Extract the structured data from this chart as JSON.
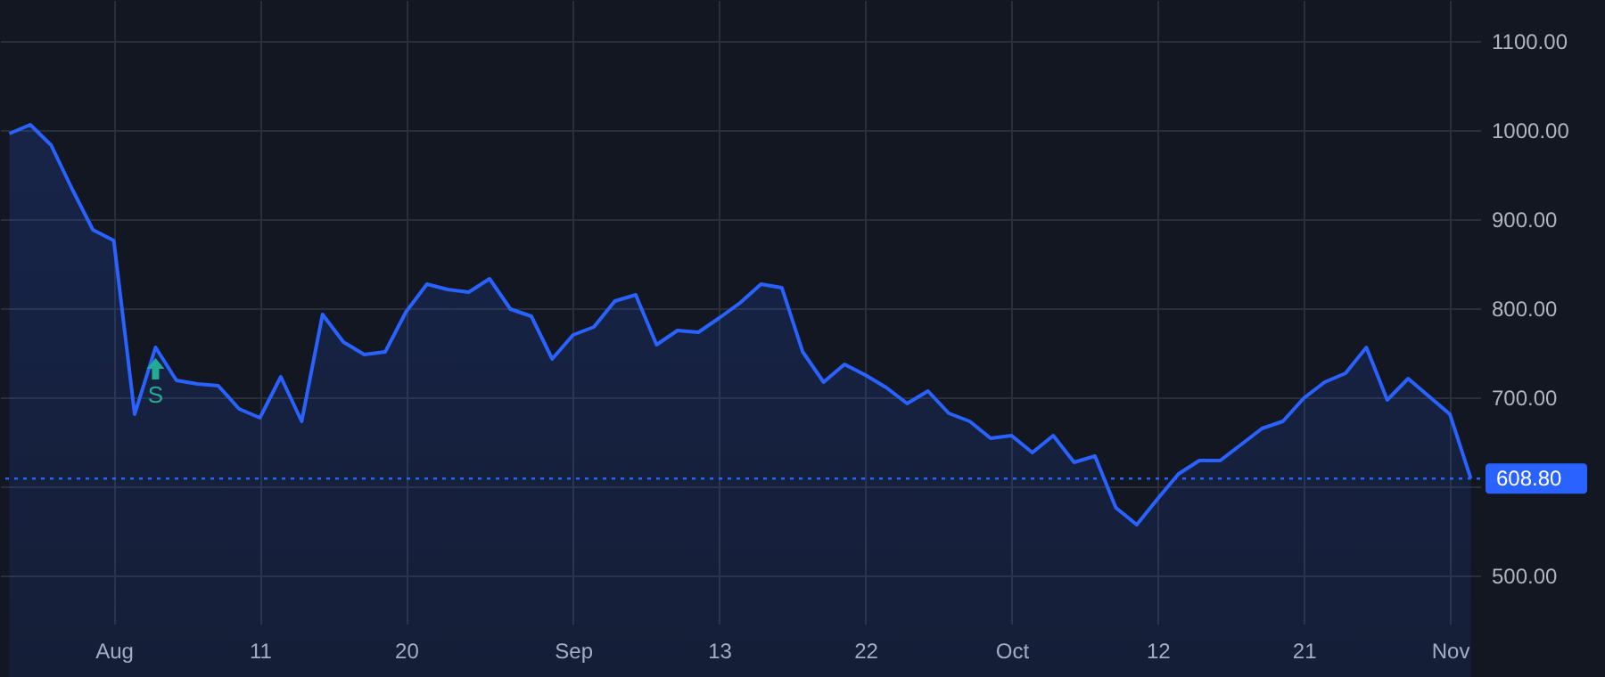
{
  "chart_data": {
    "type": "area",
    "categories": [
      null,
      null,
      null,
      null,
      null,
      "Aug",
      null,
      null,
      null,
      null,
      null,
      null,
      "11",
      null,
      null,
      null,
      null,
      null,
      null,
      "20",
      null,
      null,
      null,
      null,
      null,
      null,
      null,
      "Sep",
      null,
      null,
      null,
      null,
      null,
      null,
      "13",
      null,
      null,
      null,
      null,
      null,
      null,
      "22",
      null,
      null,
      null,
      null,
      null,
      null,
      "Oct",
      null,
      null,
      null,
      null,
      null,
      null,
      "12",
      null,
      null,
      null,
      null,
      null,
      null,
      "21",
      null,
      null,
      null,
      null,
      null,
      null,
      "Nov",
      null
    ],
    "series": [
      {
        "color": "#2962ff",
        "values": [
          996,
          1006,
          983,
          934,
          888,
          876,
          681,
          756,
          719,
          715,
          713,
          687,
          677,
          723,
          673,
          793,
          762,
          748,
          751,
          796,
          827,
          821,
          818,
          833,
          799,
          791,
          743,
          770,
          779,
          808,
          815,
          759,
          775,
          773,
          789,
          806,
          827,
          823,
          751,
          717,
          737,
          725,
          711,
          693,
          707,
          682,
          673,
          654,
          657,
          638,
          657,
          627,
          634,
          576,
          557,
          586,
          614,
          629,
          629,
          647,
          665,
          673,
          699,
          717,
          727,
          756,
          697,
          721,
          701,
          681,
          608.8
        ]
      }
    ],
    "ylim": [
      446,
      1146
    ],
    "yticks": [
      {
        "value": 500,
        "label": "500.00"
      },
      {
        "value": 600,
        "label": null
      },
      {
        "value": 700,
        "label": "700.00"
      },
      {
        "value": 800,
        "label": "800.00"
      },
      {
        "value": 900,
        "label": "900.00"
      },
      {
        "value": 1000,
        "label": "1000.00"
      },
      {
        "value": 1100,
        "label": "1100.00"
      }
    ],
    "grid": true,
    "ref_lines": [
      {
        "axis": "y",
        "value": 608.8,
        "label": "608.80",
        "color": "#2962ff",
        "line_style": "dotted"
      }
    ],
    "annotations": [
      {
        "text": "S",
        "y": 756
      }
    ]
  }
}
